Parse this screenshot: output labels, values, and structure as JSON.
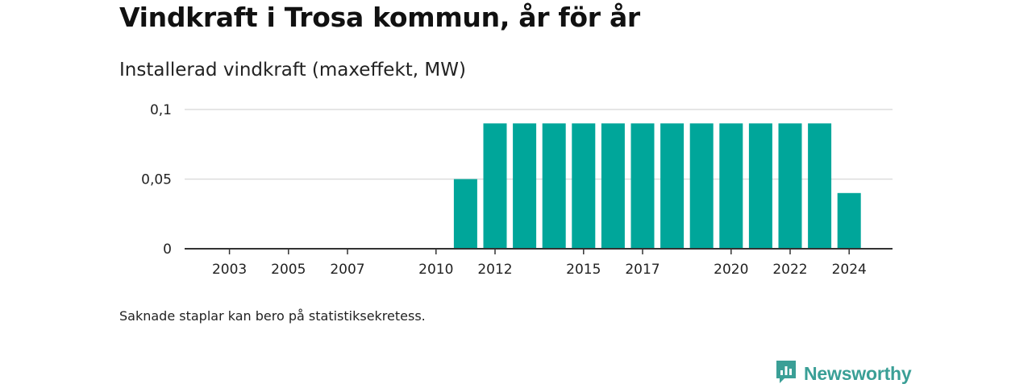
{
  "header": {
    "title": "Vindkraft i Trosa kommun, år för år",
    "subtitle": "Installerad vindkraft (maxeffekt, MW)"
  },
  "footer": {
    "note": "Saknade staplar kan bero på statistiksekretess.",
    "brand": "Newsworthy",
    "brand_icon": "newsworthy-logo-icon"
  },
  "colors": {
    "bar": "#00a69a",
    "grid": "#dddddd",
    "axis": "#333333",
    "brand": "#3a9f96"
  },
  "chart_data": {
    "type": "bar",
    "title": "Vindkraft i Trosa kommun, år för år",
    "subtitle": "Installerad vindkraft (maxeffekt, MW)",
    "categories": [
      "2002",
      "2003",
      "2004",
      "2005",
      "2006",
      "2007",
      "2008",
      "2009",
      "2010",
      "2011",
      "2012",
      "2013",
      "2014",
      "2015",
      "2016",
      "2017",
      "2018",
      "2019",
      "2020",
      "2021",
      "2022",
      "2023",
      "2024"
    ],
    "values": [
      0,
      0,
      0,
      0,
      0,
      0,
      0,
      0,
      0,
      0.05,
      0.09,
      0.09,
      0.09,
      0.09,
      0.09,
      0.09,
      0.09,
      0.09,
      0.09,
      0.09,
      0.09,
      0.09,
      0.04
    ],
    "x_tick_labels": [
      "2003",
      "2005",
      "2007",
      "2010",
      "2012",
      "2015",
      "2017",
      "2020",
      "2022",
      "2024"
    ],
    "y_ticks": [
      0,
      0.05,
      0.1
    ],
    "y_tick_labels": [
      "0",
      "0,05",
      "0,1"
    ],
    "ylim": [
      0,
      0.1
    ],
    "grid": true,
    "legend": "none"
  }
}
